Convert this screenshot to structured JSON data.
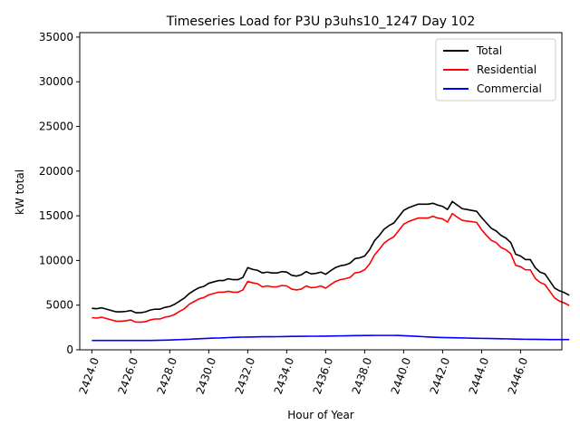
{
  "chart_data": {
    "type": "line",
    "title": "Timeseries Load for P3U p3uhs10_1247  Day 102",
    "xlabel": "Hour of Year",
    "ylabel": "kW total",
    "xlim": [
      2423.38,
      2448.12
    ],
    "ylim": [
      0,
      35500
    ],
    "xticks": [
      2424,
      2426,
      2428,
      2430,
      2432,
      2434,
      2436,
      2438,
      2440,
      2442,
      2444,
      2446
    ],
    "xtick_labels": [
      "2424.0",
      "2426.0",
      "2428.0",
      "2430.0",
      "2432.0",
      "2434.0",
      "2436.0",
      "2438.0",
      "2440.0",
      "2442.0",
      "2444.0",
      "2446.0"
    ],
    "yticks": [
      0,
      5000,
      10000,
      15000,
      20000,
      25000,
      30000,
      35000
    ],
    "ytick_labels": [
      "0",
      "5000",
      "10000",
      "15000",
      "20000",
      "25000",
      "30000",
      "35000"
    ],
    "legend_position": "top-right",
    "x_start": 2424.0,
    "x_step": 0.25,
    "series": [
      {
        "name": "Total",
        "color": "#000000",
        "values": [
          4650,
          4600,
          4700,
          4550,
          4400,
          4250,
          4250,
          4300,
          4400,
          4150,
          4150,
          4250,
          4450,
          4550,
          4550,
          4750,
          4850,
          5100,
          5450,
          5800,
          6300,
          6650,
          6950,
          7100,
          7450,
          7600,
          7750,
          7750,
          7950,
          7850,
          7850,
          8100,
          9200,
          9000,
          8900,
          8600,
          8700,
          8600,
          8600,
          8750,
          8700,
          8350,
          8250,
          8400,
          8750,
          8500,
          8550,
          8700,
          8450,
          8850,
          9200,
          9400,
          9500,
          9700,
          10200,
          10300,
          10500,
          11200,
          12200,
          12800,
          13500,
          13900,
          14200,
          14900,
          15600,
          15900,
          16100,
          16300,
          16300,
          16300,
          16400,
          16200,
          16050,
          15700,
          16600,
          16200,
          15800,
          15700,
          15600,
          15500,
          14800,
          14200,
          13600,
          13300,
          12800,
          12500,
          12000,
          10700,
          10500,
          10100,
          10100,
          9200,
          8700,
          8500,
          7700,
          6900,
          6600,
          6400,
          6100
        ]
      },
      {
        "name": "Residential",
        "color": "#ff0000",
        "values": [
          3600,
          3550,
          3650,
          3500,
          3350,
          3200,
          3200,
          3250,
          3350,
          3100,
          3100,
          3150,
          3350,
          3450,
          3450,
          3650,
          3750,
          3950,
          4300,
          4600,
          5100,
          5400,
          5700,
          5850,
          6150,
          6300,
          6450,
          6450,
          6550,
          6450,
          6450,
          6700,
          7650,
          7500,
          7400,
          7050,
          7150,
          7050,
          7050,
          7200,
          7150,
          6800,
          6700,
          6800,
          7150,
          6950,
          7000,
          7150,
          6900,
          7300,
          7650,
          7850,
          7950,
          8100,
          8600,
          8700,
          8950,
          9600,
          10600,
          11250,
          11950,
          12350,
          12650,
          13350,
          14050,
          14350,
          14550,
          14750,
          14750,
          14750,
          14950,
          14750,
          14650,
          14300,
          15250,
          14850,
          14500,
          14400,
          14350,
          14250,
          13450,
          12800,
          12250,
          12000,
          11450,
          11200,
          10750,
          9450,
          9300,
          8950,
          8950,
          8000,
          7550,
          7300,
          6550,
          5800,
          5450,
          5250,
          4950
        ]
      },
      {
        "name": "Commercial",
        "color": "#0000ff",
        "values": [
          1050,
          1050,
          1050,
          1050,
          1050,
          1050,
          1050,
          1050,
          1050,
          1050,
          1050,
          1050,
          1050,
          1060,
          1070,
          1080,
          1100,
          1120,
          1140,
          1160,
          1180,
          1210,
          1240,
          1260,
          1290,
          1310,
          1320,
          1340,
          1370,
          1390,
          1410,
          1420,
          1430,
          1440,
          1450,
          1460,
          1460,
          1460,
          1470,
          1480,
          1490,
          1500,
          1500,
          1510,
          1510,
          1520,
          1520,
          1530,
          1530,
          1540,
          1550,
          1560,
          1570,
          1580,
          1590,
          1590,
          1600,
          1600,
          1610,
          1610,
          1610,
          1610,
          1610,
          1600,
          1580,
          1550,
          1530,
          1500,
          1470,
          1440,
          1410,
          1390,
          1380,
          1360,
          1350,
          1340,
          1330,
          1320,
          1300,
          1290,
          1280,
          1270,
          1260,
          1250,
          1240,
          1230,
          1210,
          1200,
          1190,
          1180,
          1170,
          1170,
          1160,
          1160,
          1150,
          1150,
          1150,
          1150,
          1150
        ]
      }
    ]
  }
}
